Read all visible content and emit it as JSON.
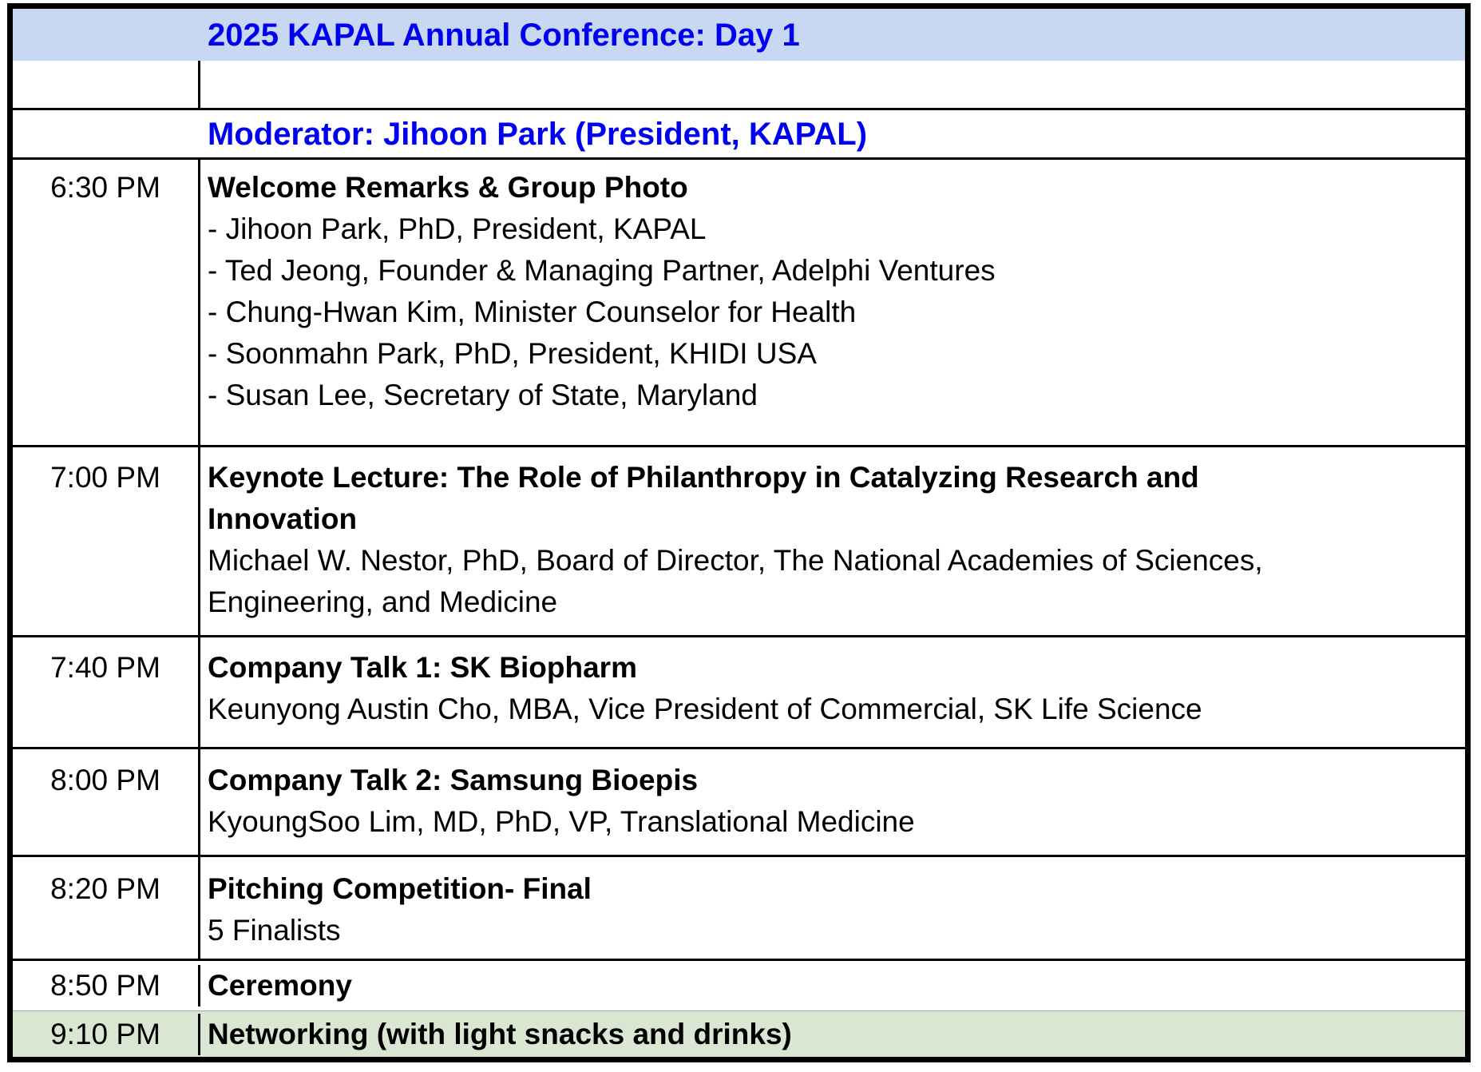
{
  "document_title": "2025 KAPAL Annual Conference: Day 1",
  "colors": {
    "header_bg": "#c9d8f2",
    "highlight_bg": "#d9e7d2",
    "title_text": "#0000f0",
    "grid_line": "#000000",
    "faint_grid_line": "#a6a6a6"
  },
  "agenda": {
    "rows": [
      {
        "name": "conference-title-row",
        "style": "header",
        "time": "",
        "lines": [
          {
            "text": "2025 KAPAL Annual Conference: Day 1",
            "bold": true
          }
        ]
      },
      {
        "name": "spacer-row",
        "style": "",
        "time": "",
        "lines": []
      },
      {
        "name": "moderator-row",
        "style": "moderator",
        "time": "",
        "lines": [
          {
            "text": "Moderator: Jihoon Park (President, KAPAL)",
            "bold": true
          }
        ]
      },
      {
        "name": "session-welcome-remarks",
        "style": "",
        "time": "6:30 PM",
        "lines": [
          {
            "text": "Welcome Remarks & Group Photo",
            "bold": true
          },
          {
            "text": "- Jihoon Park, PhD, President, KAPAL",
            "bold": false
          },
          {
            "text": "- Ted Jeong, Founder & Managing Partner, Adelphi Ventures",
            "bold": false
          },
          {
            "text": "- Chung-Hwan Kim, Minister Counselor for Health",
            "bold": false
          },
          {
            "text": "- Soonmahn Park, PhD, President, KHIDI USA",
            "bold": false
          },
          {
            "text": "- Susan Lee, Secretary of State, Maryland",
            "bold": false
          }
        ]
      },
      {
        "name": "session-keynote-lecture",
        "style": "",
        "time": "7:00 PM",
        "lines": [
          {
            "text": "Keynote Lecture: The Role of Philanthropy in Catalyzing Research and",
            "bold": true
          },
          {
            "text": "Innovation",
            "bold": true
          },
          {
            "text": "Michael W. Nestor, PhD, Board of Director, The National Academies of Sciences,",
            "bold": false
          },
          {
            "text": "Engineering, and Medicine",
            "bold": false
          }
        ]
      },
      {
        "name": "session-company-talk-1",
        "style": "",
        "time": "7:40 PM",
        "lines": [
          {
            "text": "Company Talk 1: SK Biopharm",
            "bold": true
          },
          {
            "text": "Keunyong Austin Cho, MBA, Vice President of Commercial, SK Life Science",
            "bold": false
          }
        ]
      },
      {
        "name": "session-company-talk-2",
        "style": "",
        "time": "8:00 PM",
        "lines": [
          {
            "text": "Company Talk 2: Samsung Bioepis",
            "bold": true
          },
          {
            "text": "KyoungSoo Lim, MD, PhD, VP, Translational Medicine",
            "bold": false
          }
        ]
      },
      {
        "name": "session-pitching-competition",
        "style": "",
        "time": "8:20 PM",
        "lines": [
          {
            "text": "Pitching Competition- Final",
            "bold": true
          },
          {
            "text": "5 Finalists",
            "bold": false
          }
        ]
      },
      {
        "name": "session-ceremony",
        "style": "",
        "time": "8:50 PM",
        "lines": [
          {
            "text": "Ceremony",
            "bold": true
          }
        ]
      },
      {
        "name": "session-networking",
        "style": "highlight",
        "time": "9:10 PM",
        "lines": [
          {
            "text": "Networking (with light snacks and drinks)",
            "bold": true
          }
        ]
      }
    ]
  }
}
